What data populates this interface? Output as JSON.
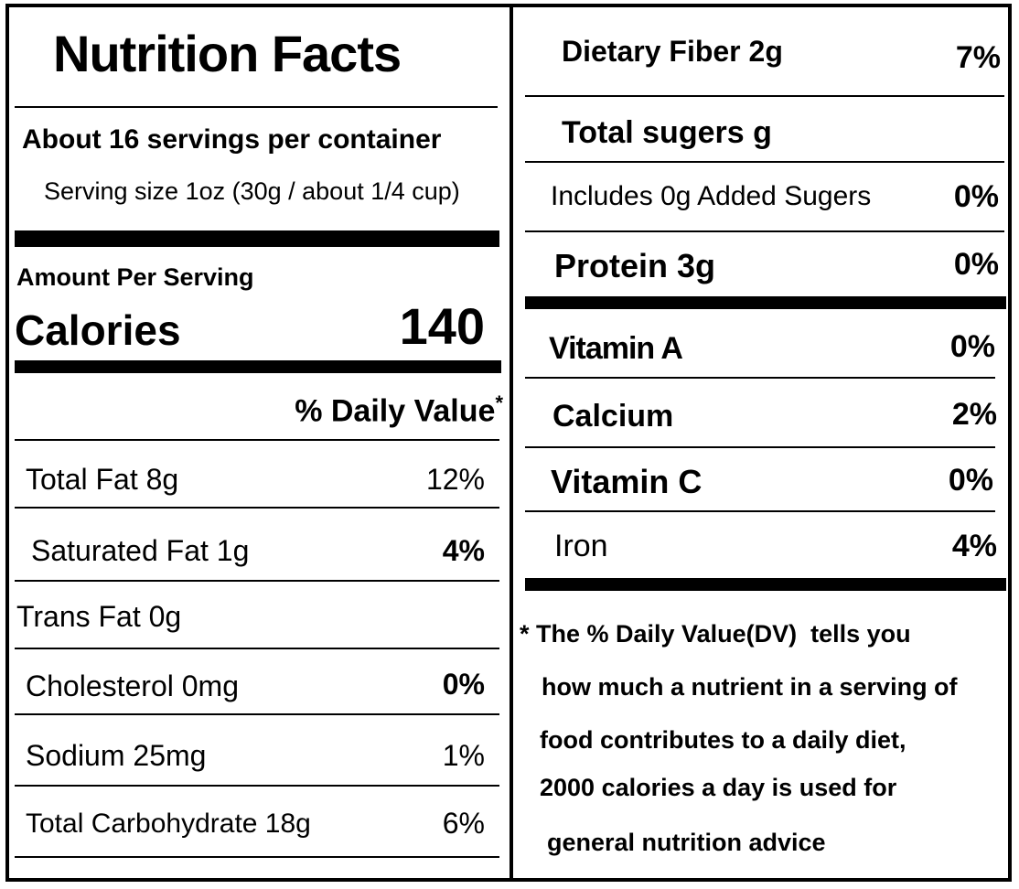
{
  "title": "Nutrition Facts",
  "servings_per_container": "About 16 servings per container",
  "serving_size": "Serving size 1oz (30g / about 1/4 cup)",
  "amount_per_serving": "Amount Per Serving",
  "calories_label": "Calories",
  "calories_value": "140",
  "daily_value_header": "% Daily Value",
  "daily_value_asterisk": "*",
  "left_rows": [
    {
      "label": "Total Fat 8g",
      "value": "12%"
    },
    {
      "label": "Saturated Fat 1g",
      "value": "4%"
    },
    {
      "label": "Trans Fat 0g",
      "value": ""
    },
    {
      "label": "Cholesterol 0mg",
      "value": "0%"
    },
    {
      "label": "Sodium 25mg",
      "value": "1%"
    },
    {
      "label": "Total Carbohydrate 18g",
      "value": "6%"
    }
  ],
  "right_rows": [
    {
      "label": "Dietary Fiber 2g",
      "value": "7%"
    },
    {
      "label": "Total sugers g",
      "value": ""
    },
    {
      "label": "Includes 0g Added Sugers",
      "value": "0%"
    },
    {
      "label": "Protein 3g",
      "value": "0%"
    },
    {
      "label": "Vitamin A",
      "value": "0%"
    },
    {
      "label": "Calcium",
      "value": "2%"
    },
    {
      "label": "Vitamin C",
      "value": "0%"
    },
    {
      "label": "Iron",
      "value": "4%"
    }
  ],
  "footnote": {
    "line1": "* The % Daily Value(DV)  tells you",
    "line2": "how much a nutrient in a serving of",
    "line3": "food contributes to a daily diet,",
    "line4": "2000 calories a day is used for",
    "line5": "general nutrition advice"
  }
}
